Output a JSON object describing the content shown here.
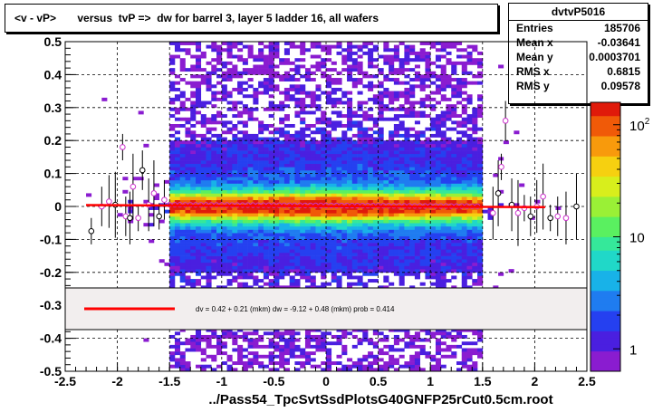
{
  "title": "<v - vP>       versus  tvP =>  dw for barrel 3, layer 5 ladder 16, all wafers",
  "stats": {
    "name": "dvtvP5016",
    "rows": [
      {
        "label": "Entries",
        "value": "185706"
      },
      {
        "label": "Mean x",
        "value": "-0.03641"
      },
      {
        "label": "Mean y",
        "value": "0.0003701"
      },
      {
        "label": "RMS x",
        "value": "0.6815"
      },
      {
        "label": "RMS y",
        "value": "0.09578"
      }
    ]
  },
  "fit_legend": "dv =     0.42 +   0.21 (mkm) dw =    -9.12 +   0.48 (mkm) prob = 0.414",
  "colors": {
    "fit_line": "#ff0000",
    "profile_points": "#cc33cc",
    "grid": "#000000"
  },
  "chart_data": {
    "type": "heatmap",
    "title": "<v - vP>       versus  tvP =>  dw for barrel 3, layer 5 ladder 16, all wafers",
    "xlabel": "../Pass54_TpcSvtSsdPlotsG40GNFP25rCut0.5cm.root",
    "ylabel": "",
    "xlim": [
      -2.5,
      2.5
    ],
    "ylim": [
      -0.5,
      0.5
    ],
    "x_ticks": [
      "-2.5",
      "-2",
      "-1.5",
      "-1",
      "-0.5",
      "0",
      "0.5",
      "1",
      "1.5",
      "2",
      "2.5"
    ],
    "y_ticks": [
      "-0.5",
      "-0.4",
      "-0.3",
      "-0.2",
      "-0.1",
      "0",
      "0.1",
      "0.2",
      "0.3",
      "0.4",
      "0.5"
    ],
    "grid": true,
    "colorbar": {
      "scale": "log",
      "ticks": [
        "1",
        "10",
        "10^2"
      ]
    },
    "density": {
      "x_core": [
        -1.5,
        1.5
      ],
      "y_center": 0.0,
      "y_sigma": 0.03
    },
    "fit_line": {
      "x": [
        -2.3,
        2.1
      ],
      "y": [
        0.004,
        -0.002
      ]
    },
    "profile_points": [
      {
        "x": -2.25,
        "y": -0.075
      },
      {
        "x": -2.15,
        "y": 0.0
      },
      {
        "x": -2.08,
        "y": 0.015
      },
      {
        "x": -2.02,
        "y": 0.005
      },
      {
        "x": -1.95,
        "y": 0.18
      },
      {
        "x": -1.92,
        "y": -0.03
      },
      {
        "x": -1.88,
        "y": -0.035
      },
      {
        "x": -1.85,
        "y": 0.06
      },
      {
        "x": -1.8,
        "y": -0.035
      },
      {
        "x": -1.76,
        "y": 0.11
      },
      {
        "x": -1.7,
        "y": 0.005
      },
      {
        "x": -1.65,
        "y": 0.04
      },
      {
        "x": -1.6,
        "y": -0.03
      },
      {
        "x": -1.55,
        "y": 0.02
      },
      {
        "x": 1.6,
        "y": -0.02
      },
      {
        "x": 1.65,
        "y": 0.04
      },
      {
        "x": 1.68,
        "y": 0.12
      },
      {
        "x": 1.72,
        "y": 0.26
      },
      {
        "x": 1.78,
        "y": 0.005
      },
      {
        "x": 1.84,
        "y": -0.02
      },
      {
        "x": 1.9,
        "y": -0.005
      },
      {
        "x": 1.96,
        "y": -0.03
      },
      {
        "x": 2.02,
        "y": 0.0
      },
      {
        "x": 2.08,
        "y": 0.03
      },
      {
        "x": 2.15,
        "y": -0.035
      },
      {
        "x": 2.22,
        "y": -0.03
      },
      {
        "x": 2.3,
        "y": -0.035
      },
      {
        "x": 2.4,
        "y": 0.0
      }
    ]
  }
}
